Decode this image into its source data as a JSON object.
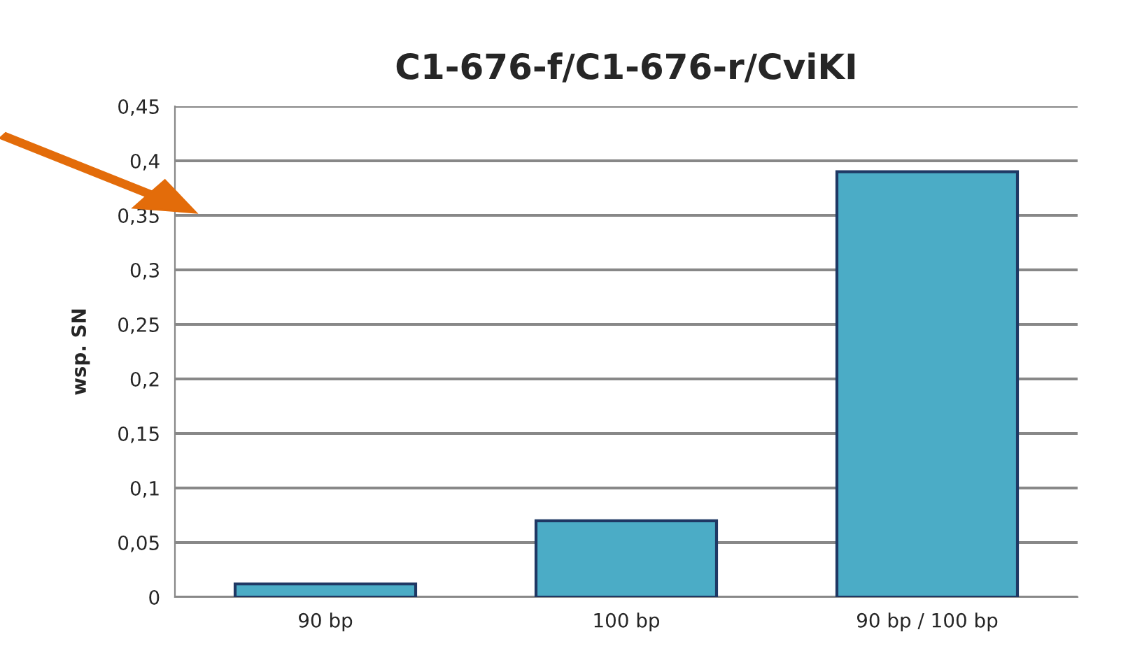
{
  "chart_data": {
    "type": "bar",
    "title": "C1-676-f/C1-676-r/CviKI",
    "ylabel": "wsp. SN",
    "categories": [
      "90 bp",
      "100 bp",
      "90 bp / 100 bp"
    ],
    "values": [
      0.012,
      0.07,
      0.39
    ],
    "color": "#4bacc6",
    "ylim": [
      0,
      0.45
    ],
    "yticks": [
      0,
      {
        "value": 0.05,
        "label": "0,05"
      },
      {
        "value": 0.1,
        "label": "0,1"
      },
      {
        "value": 0.15,
        "label": "0,15"
      },
      {
        "value": 0.2,
        "label": "0,2"
      },
      {
        "value": 0.25,
        "label": "0,25"
      },
      {
        "value": 0.3,
        "label": "0,3"
      },
      {
        "value": 0.35,
        "label": "0,35"
      },
      {
        "value": 0.4,
        "label": "0,4"
      },
      {
        "value": 0.45,
        "label": "0,45"
      }
    ],
    "grid": "y"
  }
}
